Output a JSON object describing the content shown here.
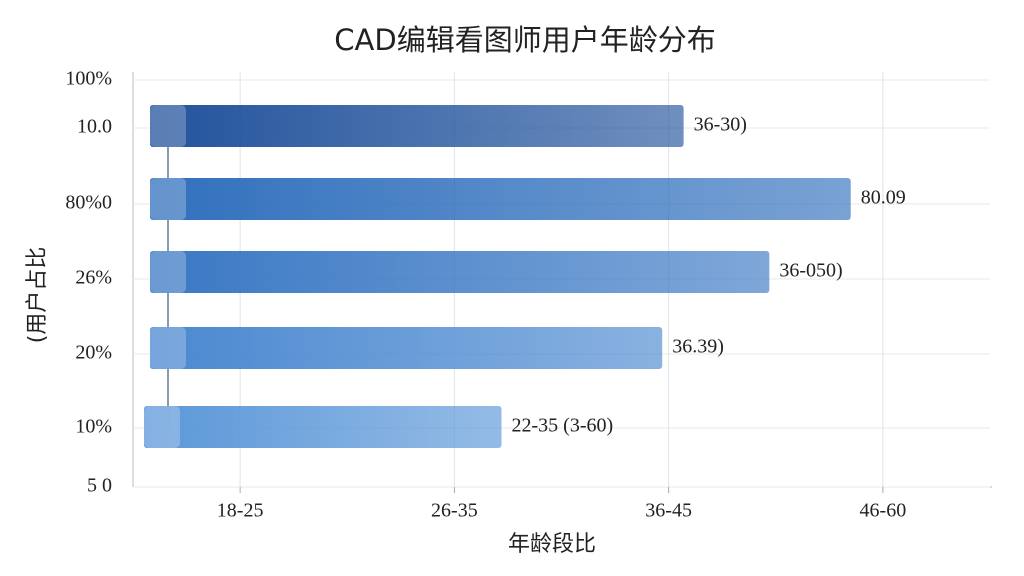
{
  "chart_data": {
    "type": "hbar",
    "title": "CAD编辑看图师用户年龄分布",
    "x_label": "年龄段比",
    "y_label": "(用户占比",
    "categories": [
      "100%",
      "10.0",
      "80%0",
      "26%",
      "20%",
      "10%",
      "5 0"
    ],
    "values": [
      null,
      3.07,
      3.85,
      3.47,
      2.97,
      2.22,
      null
    ],
    "value_labels": [
      null,
      "36-30)",
      "80.09",
      "36-050)",
      "36.39)",
      "22-35 (3-60)",
      null
    ],
    "colors": [
      null,
      "#22539c",
      "#3170bd",
      "#3a78c4",
      "#4a88d0",
      "#5b97d8",
      null
    ],
    "xlim": [
      0.5,
      4.5
    ],
    "xticks": [
      {
        "value": 1,
        "label": "18-25"
      },
      {
        "value": 2,
        "label": "26-35"
      },
      {
        "value": 3,
        "label": "36-45"
      },
      {
        "value": 4,
        "label": "46-60"
      }
    ],
    "grid": true
  }
}
